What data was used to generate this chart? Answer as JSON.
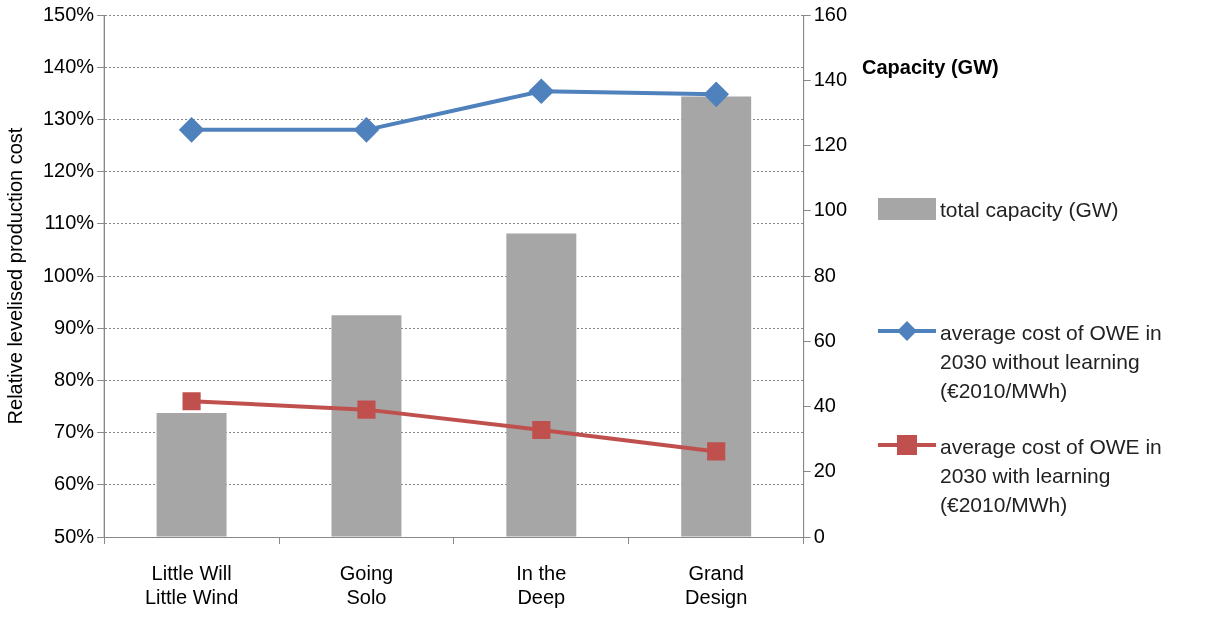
{
  "chart_data": {
    "type": "bar",
    "ylabel": "Relative levelised production cost",
    "y2label": "Capacity (GW)",
    "categories": [
      "Little Will Little Wind",
      "Going Solo",
      "In the Deep",
      "Grand Design"
    ],
    "series": [
      {
        "name": "total capacity (GW)",
        "axis": "y2",
        "color": "#a6a6a6",
        "values": [
          38,
          68,
          93,
          135
        ]
      },
      {
        "name": "average cost of OWE in 2030 without learning (€2010/MWh)",
        "type": "line",
        "axis": "y",
        "color": "#4f81bd",
        "marker": "diamond",
        "values": [
          128,
          128,
          135.4,
          134.8
        ]
      },
      {
        "name": "average cost of OWE in 2030 with learning (€2010/MWh)",
        "type": "line",
        "axis": "y",
        "color": "#c0504d",
        "marker": "square",
        "values": [
          76,
          74.4,
          70.5,
          66.4
        ]
      }
    ],
    "ylim": [
      50,
      150
    ],
    "yticks": [
      {
        "value": 50,
        "label": "50%"
      },
      {
        "value": 60,
        "label": "60%"
      },
      {
        "value": 70,
        "label": "70%"
      },
      {
        "value": 80,
        "label": "80%"
      },
      {
        "value": 90,
        "label": "90%"
      },
      {
        "value": 100,
        "label": "100%"
      },
      {
        "value": 110,
        "label": "110%"
      },
      {
        "value": 120,
        "label": "120%"
      },
      {
        "value": 130,
        "label": "130%"
      },
      {
        "value": 140,
        "label": "140%"
      },
      {
        "value": 150,
        "label": "150%"
      }
    ],
    "y2lim": [
      0,
      160
    ],
    "y2ticks": [
      0,
      20,
      40,
      60,
      80,
      100,
      120,
      140,
      160
    ],
    "grid": "y",
    "legend": "right"
  }
}
